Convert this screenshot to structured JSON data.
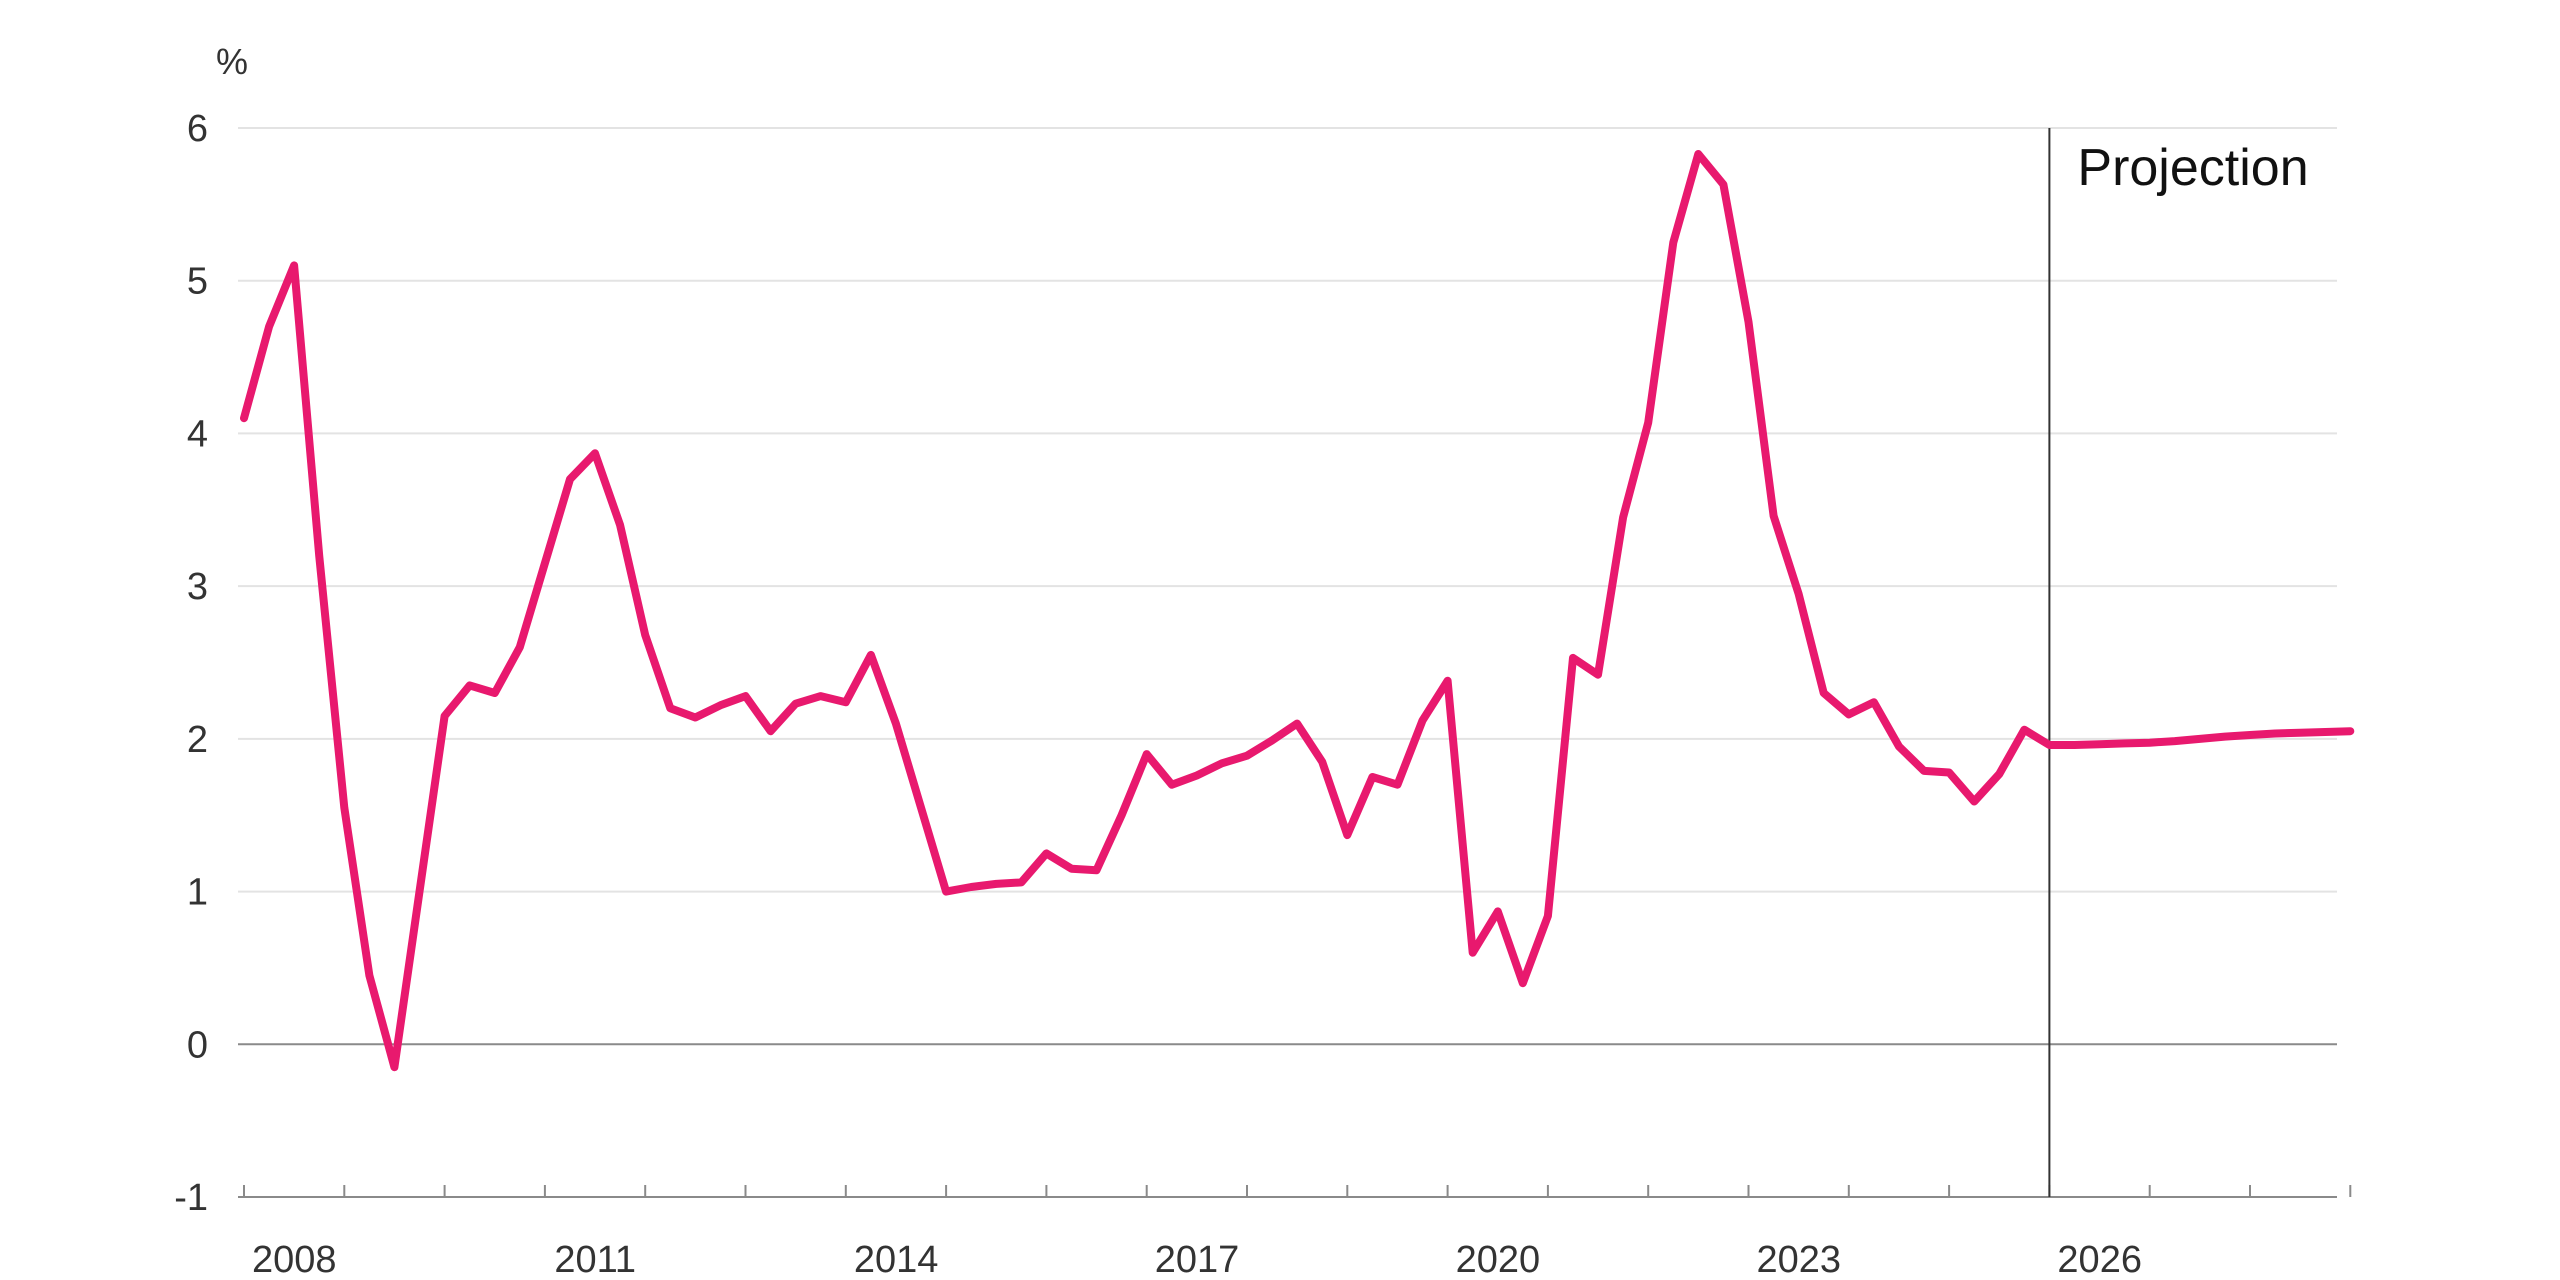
{
  "chart_data": {
    "type": "line",
    "ylabel": "%",
    "ylim": [
      -1,
      6
    ],
    "xlim": [
      2007.0,
      2028.25
    ],
    "yticks": [
      -1,
      0,
      1,
      2,
      3,
      4,
      5,
      6
    ],
    "xticks": [
      2008,
      2011,
      2014,
      2017,
      2020,
      2023,
      2026
    ],
    "grid": true,
    "projection_start": 2025.0,
    "projection_label": "Projection",
    "series": [
      {
        "color": "#e8196e",
        "points": [
          [
            2007.0,
            4.1
          ],
          [
            2007.25,
            4.7
          ],
          [
            2007.5,
            5.1
          ],
          [
            2007.75,
            3.2
          ],
          [
            2008.0,
            1.55
          ],
          [
            2008.25,
            0.45
          ],
          [
            2008.5,
            -0.15
          ],
          [
            2008.75,
            1.0
          ],
          [
            2009.0,
            2.15
          ],
          [
            2009.25,
            2.35
          ],
          [
            2009.5,
            2.3
          ],
          [
            2009.75,
            2.6
          ],
          [
            2010.0,
            3.15
          ],
          [
            2010.25,
            3.7
          ],
          [
            2010.5,
            3.87
          ],
          [
            2010.75,
            3.4
          ],
          [
            2011.0,
            2.68
          ],
          [
            2011.25,
            2.2
          ],
          [
            2011.5,
            2.14
          ],
          [
            2011.75,
            2.22
          ],
          [
            2012.0,
            2.28
          ],
          [
            2012.25,
            2.05
          ],
          [
            2012.5,
            2.23
          ],
          [
            2012.75,
            2.28
          ],
          [
            2013.0,
            2.24
          ],
          [
            2013.25,
            2.55
          ],
          [
            2013.5,
            2.1
          ],
          [
            2013.75,
            1.55
          ],
          [
            2014.0,
            1.0
          ],
          [
            2014.25,
            1.03
          ],
          [
            2014.5,
            1.05
          ],
          [
            2014.75,
            1.06
          ],
          [
            2015.0,
            1.25
          ],
          [
            2015.25,
            1.15
          ],
          [
            2015.5,
            1.14
          ],
          [
            2015.75,
            1.5
          ],
          [
            2016.0,
            1.9
          ],
          [
            2016.25,
            1.7
          ],
          [
            2016.5,
            1.76
          ],
          [
            2016.75,
            1.84
          ],
          [
            2017.0,
            1.89
          ],
          [
            2017.25,
            1.99
          ],
          [
            2017.5,
            2.1
          ],
          [
            2017.75,
            1.85
          ],
          [
            2018.0,
            1.37
          ],
          [
            2018.25,
            1.75
          ],
          [
            2018.5,
            1.7
          ],
          [
            2018.75,
            2.12
          ],
          [
            2019.0,
            2.38
          ],
          [
            2019.25,
            0.6
          ],
          [
            2019.5,
            0.87
          ],
          [
            2019.75,
            0.4
          ],
          [
            2020.0,
            0.84
          ],
          [
            2020.25,
            2.53
          ],
          [
            2020.5,
            2.42
          ],
          [
            2020.75,
            3.45
          ],
          [
            2021.0,
            4.07
          ],
          [
            2021.25,
            5.25
          ],
          [
            2021.5,
            5.83
          ],
          [
            2021.75,
            5.63
          ],
          [
            2022.0,
            4.73
          ],
          [
            2022.25,
            3.46
          ],
          [
            2022.5,
            2.95
          ],
          [
            2022.75,
            2.3
          ],
          [
            2023.0,
            2.16
          ],
          [
            2023.25,
            2.24
          ],
          [
            2023.5,
            1.95
          ],
          [
            2023.75,
            1.79
          ],
          [
            2024.0,
            1.78
          ],
          [
            2024.25,
            1.59
          ],
          [
            2024.5,
            1.77
          ],
          [
            2024.75,
            2.06
          ],
          [
            2025.0,
            1.96
          ],
          [
            2025.25,
            1.96
          ],
          [
            2025.5,
            1.965
          ],
          [
            2025.75,
            1.97
          ],
          [
            2026.0,
            1.975
          ],
          [
            2026.25,
            1.985
          ],
          [
            2026.5,
            2.0
          ],
          [
            2026.75,
            2.015
          ],
          [
            2027.0,
            2.025
          ],
          [
            2027.25,
            2.035
          ],
          [
            2027.5,
            2.04
          ],
          [
            2027.75,
            2.045
          ],
          [
            2028.0,
            2.05
          ]
        ]
      }
    ]
  }
}
